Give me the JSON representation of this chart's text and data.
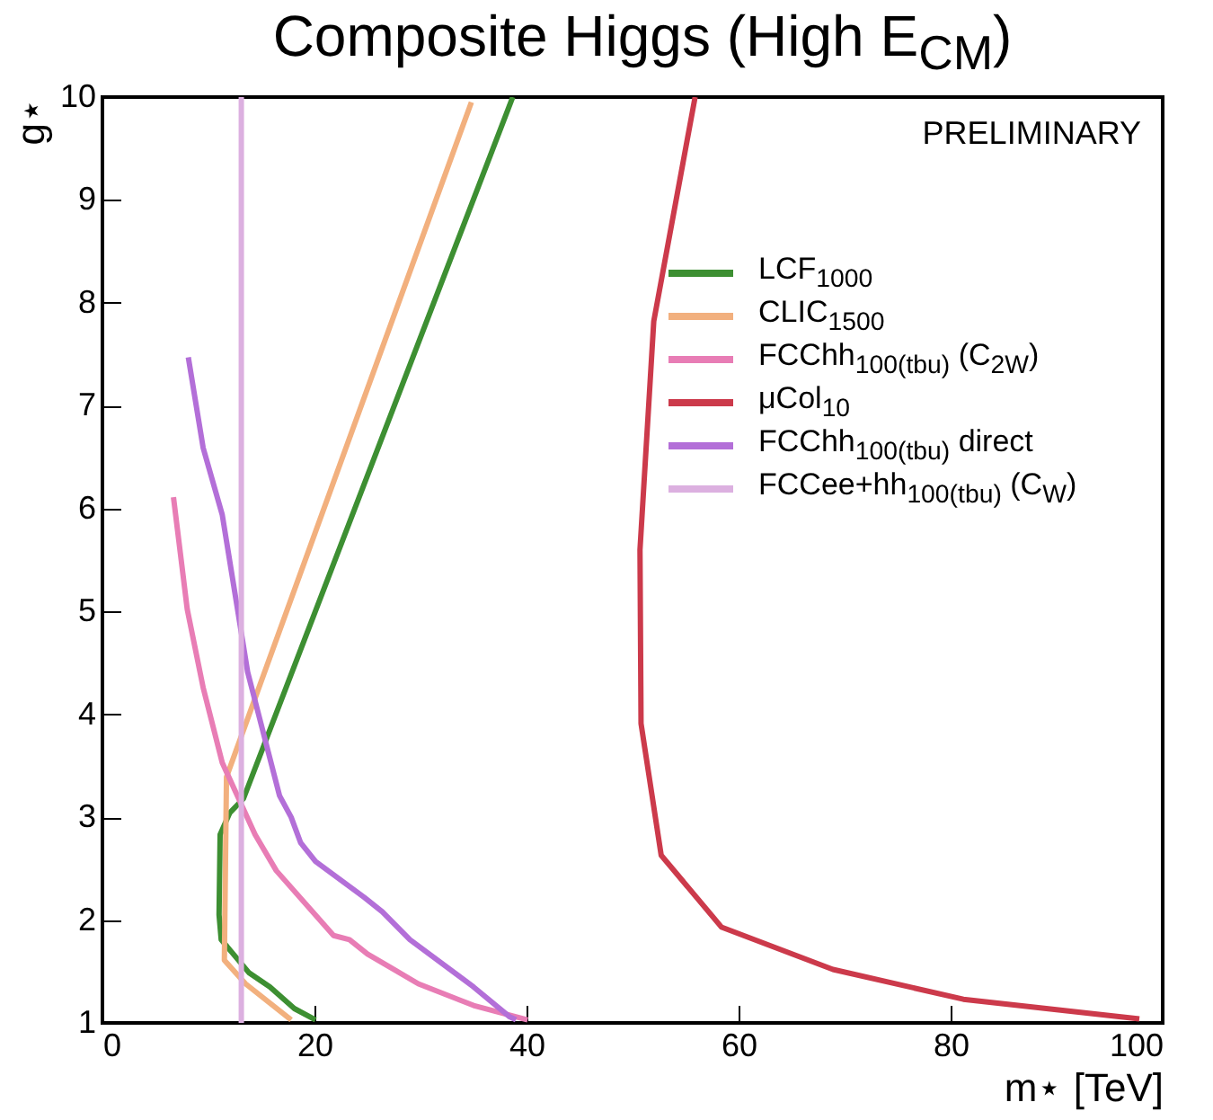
{
  "chart_data": {
    "type": "line",
    "title": "Composite Higgs (High E$_{CM}$)",
    "xlabel": "m⋆ [TeV]",
    "ylabel": "g⋆",
    "annotations": [
      "PRELIMINARY"
    ],
    "xlim": [
      0,
      100
    ],
    "ylim": [
      1,
      10
    ],
    "xticks": [
      0,
      20,
      40,
      60,
      80,
      100
    ],
    "yticks": [
      1,
      2,
      3,
      4,
      5,
      6,
      7,
      8,
      9,
      10
    ],
    "grid": false,
    "legend": "right",
    "line_style": "solid",
    "marker": "none",
    "series": [
      {
        "name": "LCF$_{1000}$",
        "color": "#3d8f32",
        "x": [
          38.7,
          13.3,
          12.0,
          11.1,
          11.0,
          11.2,
          13.8,
          15.8,
          18.1,
          20.1
        ],
        "values": [
          10,
          3.18,
          3.04,
          2.83,
          2.05,
          1.81,
          1.49,
          1.35,
          1.14,
          1.03
        ]
      },
      {
        "name": "CLIC$_{1500}$",
        "color": "#f2b07e",
        "x": [
          34.8,
          11.7,
          11.5,
          13.5,
          17.8
        ],
        "values": [
          9.95,
          3.39,
          1.61,
          1.38,
          1.03
        ]
      },
      {
        "name": "FCChh$_{100(tbu)}$ (C$_{2W}$)",
        "color": "#e87db5",
        "x": [
          6.7,
          8.0,
          9.5,
          11.3,
          14.4,
          16.4,
          21.8,
          23.3,
          25.0,
          27.0,
          29.8,
          35.0,
          40.1
        ],
        "values": [
          6.11,
          5.02,
          4.26,
          3.53,
          2.83,
          2.48,
          1.85,
          1.81,
          1.67,
          1.55,
          1.38,
          1.17,
          1.03
        ]
      },
      {
        "name": "μCol$_{10}$",
        "color": "#cc3a4b",
        "x": [
          55.9,
          52.0,
          50.7,
          50.8,
          52.7,
          58.4,
          68.9,
          81.2,
          97.8
        ],
        "values": [
          10,
          7.82,
          5.6,
          3.91,
          2.63,
          1.93,
          1.52,
          1.23,
          1.04
        ]
      },
      {
        "name": "FCChh$_{100(tbu)}$ direct",
        "color": "#b36fd8",
        "x": [
          8.1,
          9.5,
          11.3,
          13.7,
          16.7,
          17.8,
          18.7,
          20.1,
          24.7,
          26.4,
          29.0,
          35.0,
          38.4,
          39.0
        ],
        "values": [
          7.47,
          6.59,
          5.94,
          4.41,
          3.21,
          3.0,
          2.75,
          2.57,
          2.22,
          2.08,
          1.81,
          1.35,
          1.06,
          1.03
        ]
      },
      {
        "name": "FCCee+hh$_{100(tbu)}$ (C$_{W}$)",
        "color": "#dcb0e0",
        "x": [
          13.1,
          13.1
        ],
        "values": [
          1,
          10
        ]
      }
    ]
  }
}
